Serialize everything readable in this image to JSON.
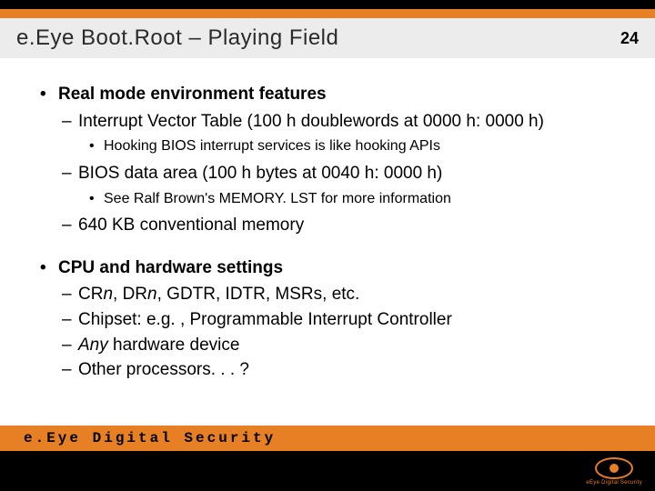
{
  "colors": {
    "orange": "#e77f24",
    "black": "#000000",
    "titlebar_bg": "#ececec",
    "title_text": "#2a2a2a",
    "white": "#ffffff"
  },
  "page_number": "24",
  "title": "e.Eye Boot.Root – Playing Field",
  "bullets": [
    {
      "text": "Real mode environment features",
      "children": [
        {
          "text": "Interrupt Vector Table (100 h doublewords at 0000 h: 0000 h)",
          "children": [
            {
              "text": "Hooking BIOS interrupt services is like hooking APIs"
            }
          ]
        },
        {
          "text": "BIOS data area (100 h bytes at 0040 h: 0000 h)",
          "children": [
            {
              "text": "See Ralf Brown's MEMORY. LST for more information"
            }
          ]
        },
        {
          "text": "640 KB conventional memory"
        }
      ]
    },
    {
      "text": "CPU and hardware settings",
      "children": [
        {
          "html": "CR<span class=\"italic\">n</span>, DR<span class=\"italic\">n</span>, GDTR, IDTR, MSRs, etc."
        },
        {
          "text": "Chipset: e.g. , Programmable Interrupt Controller"
        },
        {
          "html": "<span class=\"italic\">Any</span> hardware device"
        },
        {
          "text": "Other processors. . . ?"
        }
      ]
    }
  ],
  "footer_brand": "e.Eye Digital Security",
  "logo_subtext": "eEye Digital Security"
}
